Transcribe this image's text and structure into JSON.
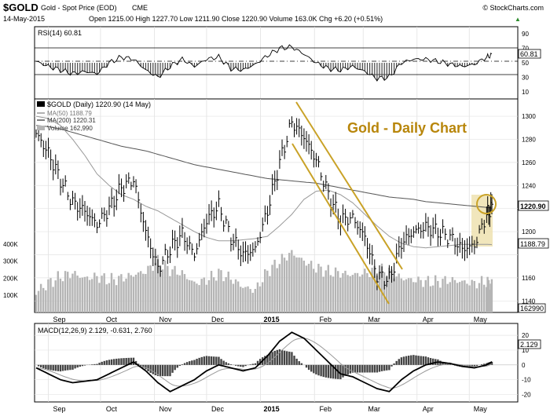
{
  "header": {
    "symbol": "$GOLD",
    "name": "Gold - Spot Price (EOD)",
    "exchange": "CME",
    "date": "14-May-2015",
    "quote": "Open 1215.00  High 1227.70  Low 1211.90  Close 1220.90  Volume 163.0K  Chg +6.20 (+0.51%)",
    "quote_arrow": "▲",
    "credit": "© StockCharts.com"
  },
  "rsi_panel": {
    "legend": "RSI(14) 60.81",
    "value_label": "60.81",
    "levels": [
      90,
      70,
      50,
      30,
      10
    ]
  },
  "price_panel": {
    "legend": "$GOLD (Daily) 1220.90 (14 May)",
    "ma50_legend": "MA(50) 1188.79",
    "ma200_legend": "MA(200) 1220.31",
    "volume_legend": "Volume 162,990",
    "annotation": "Gold - Daily Chart",
    "price_ticks": [
      1300,
      1280,
      1260,
      1240,
      1220,
      1200,
      1180,
      1160,
      1140
    ],
    "price_tick_labels": [
      "1300",
      "1280",
      "1260",
      "1240",
      "",
      "1200",
      "",
      "1160",
      "1140"
    ],
    "volume_ticks": [
      "400K",
      "300K",
      "200K",
      "100K"
    ],
    "right_labels": {
      "close": "1220.90",
      "ma50": "1188.79",
      "volume": "162990"
    }
  },
  "macd_panel": {
    "legend": "MACD(12,26,9) 2.129, -0.631, 2.760",
    "value_label": "2.129",
    "ticks": [
      "20",
      "10",
      "0",
      "-10",
      "-20"
    ]
  },
  "x_axis": {
    "labels": [
      "Sep",
      "Oct",
      "Nov",
      "Dec",
      "2015",
      "Feb",
      "Mar",
      "Apr",
      "May"
    ]
  },
  "colors": {
    "annotation": "#b8860b",
    "channel": "#c9a227",
    "highlight": "#efe2b0",
    "bars": "#000000",
    "ma": "#888888",
    "volume": "#b5b5b5"
  },
  "chart_data": {
    "type": "line",
    "x": [
      "2014-08-25",
      "2014-09-01",
      "2014-09-08",
      "2014-09-15",
      "2014-09-22",
      "2014-09-29",
      "2014-10-06",
      "2014-10-13",
      "2014-10-20",
      "2014-10-27",
      "2014-11-03",
      "2014-11-10",
      "2014-11-17",
      "2014-11-24",
      "2014-12-01",
      "2014-12-08",
      "2014-12-15",
      "2014-12-22",
      "2014-12-29",
      "2015-01-05",
      "2015-01-12",
      "2015-01-19",
      "2015-01-26",
      "2015-02-02",
      "2015-02-09",
      "2015-02-16",
      "2015-02-23",
      "2015-03-02",
      "2015-03-09",
      "2015-03-16",
      "2015-03-23",
      "2015-03-30",
      "2015-04-06",
      "2015-04-13",
      "2015-04-20",
      "2015-04-27",
      "2015-05-04",
      "2015-05-11",
      "2015-05-14"
    ],
    "series": [
      {
        "name": "$GOLD",
        "values": [
          1285,
          1268,
          1245,
          1225,
          1218,
          1206,
          1220,
          1238,
          1245,
          1200,
          1168,
          1185,
          1198,
          1180,
          1210,
          1222,
          1195,
          1180,
          1185,
          1218,
          1260,
          1295,
          1282,
          1262,
          1232,
          1210,
          1212,
          1195,
          1162,
          1158,
          1190,
          1200,
          1204,
          1200,
          1195,
          1185,
          1188,
          1215,
          1220.9
        ]
      },
      {
        "name": "MA(50)",
        "values": [
          1300,
          1298,
          1292,
          1280,
          1266,
          1250,
          1240,
          1232,
          1228,
          1222,
          1218,
          1212,
          1206,
          1200,
          1195,
          1192,
          1192,
          1193,
          1194,
          1196,
          1205,
          1215,
          1228,
          1235,
          1236,
          1232,
          1225,
          1215,
          1205,
          1196,
          1190,
          1187,
          1186,
          1187,
          1188,
          1189,
          1189,
          1189,
          1188.79
        ]
      },
      {
        "name": "MA(200)",
        "values": [
          1292,
          1291,
          1289,
          1286,
          1283,
          1280,
          1277,
          1274,
          1272,
          1270,
          1267,
          1264,
          1261,
          1258,
          1256,
          1254,
          1252,
          1250,
          1248,
          1246,
          1245,
          1244,
          1243,
          1242,
          1240,
          1238,
          1236,
          1234,
          1232,
          1230,
          1229,
          1228,
          1226,
          1225,
          1224,
          1223,
          1222,
          1221,
          1220.31
        ]
      }
    ],
    "rsi": [
      52,
      45,
      40,
      35,
      38,
      35,
      50,
      58,
      55,
      40,
      30,
      45,
      55,
      45,
      55,
      58,
      42,
      40,
      48,
      60,
      70,
      72,
      62,
      50,
      42,
      40,
      45,
      38,
      28,
      30,
      50,
      55,
      55,
      52,
      48,
      45,
      48,
      58,
      60.81
    ],
    "macd": [
      -2,
      -6,
      -10,
      -12,
      -11,
      -10,
      -6,
      -2,
      2,
      -4,
      -12,
      -18,
      -14,
      -10,
      -4,
      0,
      -2,
      -4,
      -2,
      6,
      16,
      22,
      18,
      10,
      2,
      -6,
      -8,
      -12,
      -16,
      -18,
      -10,
      -4,
      0,
      2,
      1,
      -1,
      -2,
      0,
      2.129
    ],
    "volume_k": [
      120,
      170,
      210,
      230,
      200,
      210,
      190,
      200,
      220,
      240,
      300,
      250,
      230,
      170,
      190,
      230,
      200,
      150,
      130,
      240,
      300,
      350,
      300,
      260,
      240,
      230,
      220,
      230,
      250,
      240,
      200,
      190,
      180,
      180,
      190,
      180,
      170,
      180,
      163
    ],
    "annotations": [
      "Gold - Daily Chart"
    ],
    "ylim_price": [
      1130,
      1315
    ],
    "ylim_rsi": [
      0,
      100
    ],
    "ylim_macd": [
      -25,
      28
    ],
    "grid": true,
    "legend": "top-left"
  }
}
